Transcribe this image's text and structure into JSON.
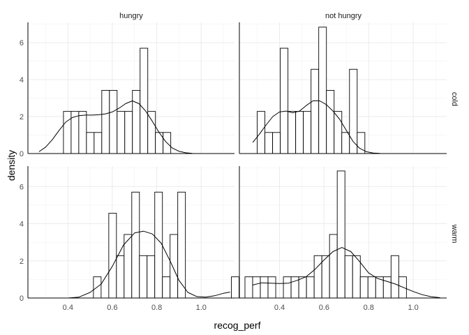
{
  "chart_data": {
    "type": "histogram",
    "xlabel": "recog_perf",
    "ylabel": "density",
    "xlim": [
      0.22,
      1.15
    ],
    "ylim": [
      0,
      7.1
    ],
    "x_ticks": [
      0.4,
      0.6,
      0.8,
      1.0
    ],
    "x_tick_labels": [
      "0.4",
      "0.6",
      "0.8",
      "1.0"
    ],
    "y_ticks": [
      0,
      2,
      4,
      6
    ],
    "y_tick_labels": [
      "0",
      "2",
      "4",
      "6"
    ],
    "grid": true,
    "bin_width": 0.0345,
    "column_labels": [
      "hungry",
      "not hungry"
    ],
    "row_labels": [
      "cold",
      "warm"
    ],
    "panels": [
      {
        "col": "hungry",
        "row": "cold",
        "bins_start": 0.38,
        "bar_heights": [
          2.28,
          2.28,
          2.28,
          1.14,
          1.14,
          3.42,
          3.42,
          2.28,
          2.28,
          3.42,
          5.7,
          2.28,
          1.14,
          1.14
        ],
        "density_x": [
          0.27,
          0.3,
          0.33,
          0.36,
          0.39,
          0.42,
          0.45,
          0.48,
          0.51,
          0.54,
          0.57,
          0.6,
          0.63,
          0.66,
          0.69,
          0.72,
          0.75,
          0.78,
          0.81,
          0.84,
          0.87,
          0.9,
          0.93,
          0.96
        ],
        "density_y": [
          0.1,
          0.35,
          0.75,
          1.25,
          1.7,
          1.95,
          2.05,
          2.08,
          2.08,
          2.1,
          2.15,
          2.25,
          2.45,
          2.7,
          2.85,
          2.7,
          2.3,
          1.75,
          1.15,
          0.65,
          0.3,
          0.12,
          0.04,
          0.01
        ]
      },
      {
        "col": "not hungry",
        "row": "cold",
        "bins_start": 0.3,
        "bar_heights": [
          2.28,
          1.14,
          1.14,
          5.7,
          2.28,
          2.28,
          2.28,
          4.56,
          6.84,
          3.42,
          2.28,
          1.14,
          4.56,
          1.14
        ],
        "density_x": [
          0.28,
          0.31,
          0.34,
          0.37,
          0.4,
          0.43,
          0.46,
          0.49,
          0.52,
          0.55,
          0.58,
          0.61,
          0.64,
          0.67,
          0.7,
          0.73,
          0.76,
          0.79,
          0.82,
          0.85
        ],
        "density_y": [
          0.6,
          1.05,
          1.55,
          2.0,
          2.25,
          2.3,
          2.2,
          2.3,
          2.6,
          2.85,
          2.85,
          2.65,
          2.3,
          1.85,
          1.25,
          0.65,
          0.28,
          0.1,
          0.03,
          0.01
        ]
      },
      {
        "col": "hungry",
        "row": "warm",
        "bins_start": 0.515,
        "bar_heights": [
          1.14,
          0.0,
          4.56,
          2.28,
          3.42,
          5.7,
          2.28,
          2.28,
          5.7,
          1.14,
          3.42,
          5.7,
          0.0,
          0.0,
          0.0,
          0.0,
          0.0,
          0.0,
          1.14
        ],
        "density_x": [
          0.25,
          0.3,
          0.35,
          0.4,
          0.45,
          0.5,
          0.55,
          0.6,
          0.65,
          0.7,
          0.74,
          0.78,
          0.82,
          0.86,
          0.9,
          0.94,
          0.98,
          1.02,
          1.06,
          1.1,
          1.13
        ],
        "density_y": [
          0.0,
          0.0,
          0.0,
          0.0,
          0.05,
          0.3,
          0.75,
          1.7,
          2.85,
          3.5,
          3.6,
          3.45,
          2.95,
          2.0,
          0.95,
          0.3,
          0.08,
          0.05,
          0.12,
          0.25,
          0.32
        ]
      },
      {
        "col": "not hungry",
        "row": "warm",
        "bins_start": 0.245,
        "bar_heights": [
          1.14,
          1.14,
          1.14,
          1.14,
          0.0,
          1.14,
          1.14,
          1.14,
          1.14,
          2.28,
          2.28,
          3.42,
          6.84,
          2.28,
          2.28,
          1.14,
          1.14,
          1.14,
          1.14,
          2.28,
          1.14
        ],
        "density_x": [
          0.28,
          0.32,
          0.36,
          0.4,
          0.44,
          0.48,
          0.52,
          0.56,
          0.6,
          0.64,
          0.68,
          0.72,
          0.76,
          0.8,
          0.84,
          0.88,
          0.92,
          0.96,
          1.0,
          1.04,
          1.08,
          1.12
        ],
        "density_y": [
          0.7,
          0.82,
          0.8,
          0.78,
          0.8,
          0.95,
          1.15,
          1.55,
          2.05,
          2.5,
          2.72,
          2.5,
          1.95,
          1.35,
          1.05,
          0.9,
          0.75,
          0.55,
          0.35,
          0.18,
          0.07,
          0.02
        ]
      }
    ]
  }
}
